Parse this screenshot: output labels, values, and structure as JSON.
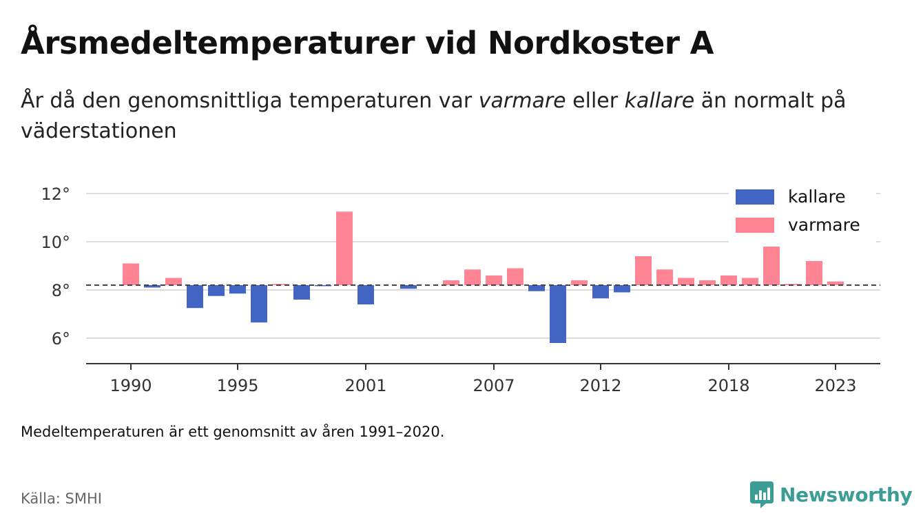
{
  "title": "Årsmedeltemperaturer vid Nordkoster A",
  "subtitle": {
    "part1": "År då den genomsnittliga temperaturen var ",
    "em1": "varmare",
    "part2": " eller ",
    "em2": "kallare",
    "part3": " än normalt på väderstationen"
  },
  "note": "Medeltemperaturen är ett genomsnitt av åren 1991–2020.",
  "source": "Källa: SMHI",
  "brand": {
    "name": "Newsworthy",
    "icon": "newsworthy-logo-icon",
    "color": "#3b9e96"
  },
  "chart_data": {
    "type": "bar",
    "baseline": 8.2,
    "baseline_style": "dashed",
    "ylim": [
      4.9,
      13
    ],
    "yticks": [
      6,
      8,
      10,
      12
    ],
    "ytick_suffix": "°",
    "xtick_years": [
      1990,
      1995,
      2001,
      2007,
      2012,
      2018,
      2023
    ],
    "grid": true,
    "legend_position": "top-right",
    "colors": {
      "kallare": "#4265c4",
      "varmare": "#ff8595"
    },
    "series": [
      {
        "name": "kallare",
        "key": "kallare"
      },
      {
        "name": "varmare",
        "key": "varmare"
      }
    ],
    "bars": [
      {
        "year": 1990,
        "value": 9.1
      },
      {
        "year": 1991,
        "value": 8.1
      },
      {
        "year": 1992,
        "value": 8.5
      },
      {
        "year": 1993,
        "value": 7.25
      },
      {
        "year": 1994,
        "value": 7.75
      },
      {
        "year": 1995,
        "value": 7.85
      },
      {
        "year": 1996,
        "value": 6.65
      },
      {
        "year": 1997,
        "value": 8.25
      },
      {
        "year": 1998,
        "value": 7.6
      },
      {
        "year": 1999,
        "value": 8.18
      },
      {
        "year": 2000,
        "value": 11.25
      },
      {
        "year": 2001,
        "value": 7.4
      },
      {
        "year": 2003,
        "value": 8.05
      },
      {
        "year": 2005,
        "value": 8.4
      },
      {
        "year": 2006,
        "value": 8.85
      },
      {
        "year": 2007,
        "value": 8.6
      },
      {
        "year": 2008,
        "value": 8.9
      },
      {
        "year": 2009,
        "value": 7.95
      },
      {
        "year": 2010,
        "value": 5.8
      },
      {
        "year": 2011,
        "value": 8.4
      },
      {
        "year": 2012,
        "value": 7.65
      },
      {
        "year": 2013,
        "value": 7.9
      },
      {
        "year": 2014,
        "value": 9.4
      },
      {
        "year": 2015,
        "value": 8.85
      },
      {
        "year": 2016,
        "value": 8.5
      },
      {
        "year": 2017,
        "value": 8.4
      },
      {
        "year": 2018,
        "value": 8.6
      },
      {
        "year": 2019,
        "value": 8.5
      },
      {
        "year": 2020,
        "value": 9.8
      },
      {
        "year": 2021,
        "value": 8.25
      },
      {
        "year": 2022,
        "value": 9.2
      },
      {
        "year": 2023,
        "value": 8.35
      }
    ]
  }
}
